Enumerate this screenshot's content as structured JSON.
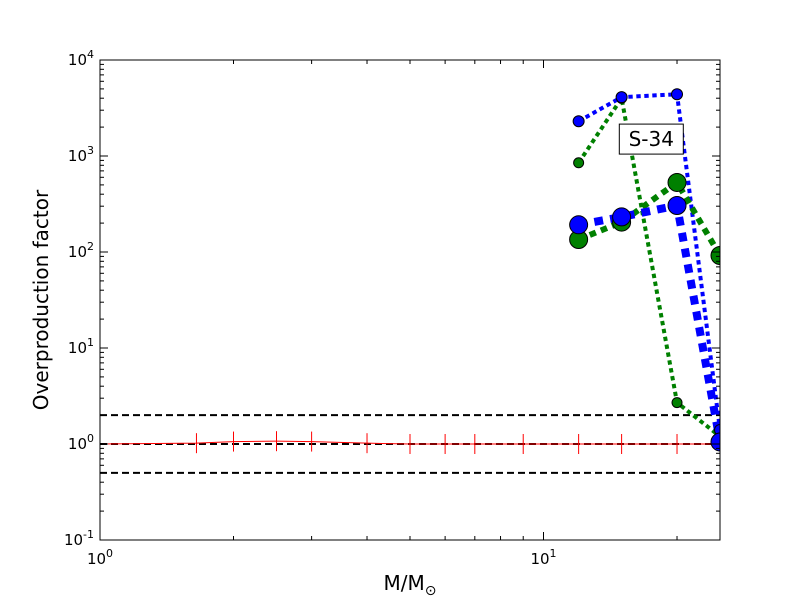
{
  "chart_data": {
    "type": "line",
    "xlabel_main": "M/M",
    "xlabel_sub": "⊙",
    "ylabel": "Overproduction factor",
    "xscale": "log",
    "yscale": "log",
    "xlim": [
      1,
      25
    ],
    "ylim": [
      0.1,
      10000
    ],
    "x_ticks": [
      {
        "value": 1,
        "base": "10",
        "exp": "0"
      },
      {
        "value": 10,
        "base": "10",
        "exp": "1"
      }
    ],
    "y_ticks": [
      {
        "value": 0.1,
        "base": "10",
        "exp": "-1"
      },
      {
        "value": 1,
        "base": "10",
        "exp": "0"
      },
      {
        "value": 10,
        "base": "10",
        "exp": "1"
      },
      {
        "value": 100,
        "base": "10",
        "exp": "2"
      },
      {
        "value": 1000,
        "base": "10",
        "exp": "3"
      },
      {
        "value": 10000,
        "base": "10",
        "exp": "4"
      }
    ],
    "annotation": {
      "text": "S-34",
      "x": 17.5,
      "y": 1500
    },
    "reference_lines": [
      {
        "y": 2,
        "color": "#000000",
        "style": "dashed"
      },
      {
        "y": 1,
        "color": "#000000",
        "style": "dashed"
      },
      {
        "y": 0.5,
        "color": "#000000",
        "style": "dashed"
      }
    ],
    "series": [
      {
        "color": "#ff0000",
        "style": "solid",
        "marker": "plus",
        "width": 1,
        "x": [
          1,
          1.65,
          2,
          2.5,
          3,
          4,
          5,
          6,
          7,
          9,
          12,
          15,
          20,
          25
        ],
        "y": [
          1,
          1.02,
          1.06,
          1.07,
          1.06,
          1.02,
          1.0,
          1.0,
          1.0,
          1.0,
          1.0,
          1.0,
          1.0,
          1.0
        ]
      },
      {
        "color": "#008000",
        "style": "dotted",
        "marker": "circle",
        "width": 4,
        "marker_r": 5,
        "x": [
          12,
          15,
          20,
          25
        ],
        "y": [
          850,
          4000,
          2.7,
          1.2
        ]
      },
      {
        "color": "#0000ff",
        "style": "dotted",
        "marker": "circle",
        "width": 4,
        "marker_r": 5.5,
        "x": [
          12,
          15,
          20,
          25
        ],
        "y": [
          2300,
          4100,
          4400,
          1.4
        ]
      },
      {
        "color": "#008000",
        "style": "dotted",
        "marker": "circle",
        "width": 6,
        "marker_r": 9,
        "x": [
          12,
          15,
          20,
          25
        ],
        "y": [
          135,
          205,
          530,
          92
        ]
      },
      {
        "color": "#0000ff",
        "style": "dotted",
        "marker": "circle",
        "width": 8,
        "marker_r": 9,
        "x": [
          12,
          15,
          20,
          25
        ],
        "y": [
          192,
          232,
          305,
          1.05
        ]
      }
    ]
  }
}
